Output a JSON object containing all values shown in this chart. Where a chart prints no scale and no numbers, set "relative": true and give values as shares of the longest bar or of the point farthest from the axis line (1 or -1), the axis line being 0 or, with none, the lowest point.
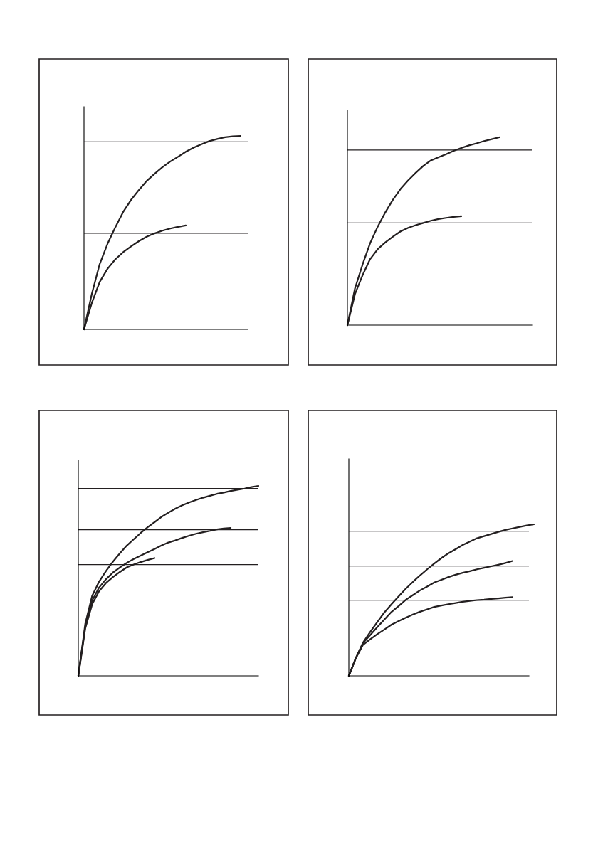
{
  "chart_data": [
    {
      "type": "line",
      "relative": true,
      "categories": [
        null,
        null,
        null,
        null,
        null,
        null,
        null,
        null,
        null,
        null,
        null,
        null,
        null,
        null,
        null,
        null,
        null,
        null,
        null,
        null,
        null,
        null
      ],
      "series": [
        {
          "color": "#231f20",
          "values": [
            0,
            0.184,
            0.337,
            0.442,
            0.528,
            0.607,
            0.669,
            0.72,
            0.767,
            0.804,
            0.838,
            0.867,
            0.892,
            0.918,
            0.939,
            0.957,
            0.973,
            0.984,
            0.993,
            0.998,
            1.0,
            null
          ]
        },
        {
          "color": "#231f20",
          "values": [
            0,
            0.137,
            0.245,
            0.313,
            0.362,
            0.399,
            0.429,
            0.456,
            0.479,
            0.496,
            0.51,
            0.521,
            0.53,
            0.537,
            null,
            null,
            null,
            null,
            null,
            null,
            null,
            null
          ]
        }
      ],
      "ref_lines": [
        {
          "axis": "y",
          "value": 0.969,
          "color": "#231f20"
        },
        {
          "axis": "y",
          "value": 0.497,
          "color": "#231f20"
        }
      ]
    },
    {
      "type": "line",
      "relative": true,
      "categories": [
        null,
        null,
        null,
        null,
        null,
        null,
        null,
        null,
        null,
        null,
        null,
        null,
        null,
        null,
        null,
        null,
        null,
        null,
        null,
        null,
        null,
        null,
        null,
        null,
        null
      ],
      "series": [
        {
          "color": "#231f20",
          "values": [
            0,
            0.196,
            0.323,
            0.437,
            0.525,
            0.601,
            0.668,
            0.725,
            0.771,
            0.811,
            0.848,
            0.877,
            0.894,
            0.91,
            0.928,
            0.943,
            0.957,
            0.968,
            0.98,
            0.99,
            1.0,
            null,
            null,
            null,
            null
          ]
        },
        {
          "color": "#231f20",
          "values": [
            0,
            0.165,
            0.266,
            0.352,
            0.405,
            0.441,
            0.471,
            0.499,
            0.518,
            0.532,
            0.544,
            0.556,
            0.565,
            0.571,
            0.576,
            0.58,
            null,
            null,
            null,
            null,
            null,
            null,
            null,
            null,
            null
          ]
        }
      ],
      "ref_lines": [
        {
          "axis": "y",
          "value": 0.932,
          "color": "#231f20"
        },
        {
          "axis": "y",
          "value": 0.544,
          "color": "#231f20"
        }
      ]
    },
    {
      "type": "line",
      "relative": true,
      "categories": [
        null,
        null,
        null,
        null,
        null,
        null,
        null,
        null,
        null,
        null,
        null,
        null,
        null,
        null,
        null,
        null,
        null,
        null,
        null,
        null,
        null,
        null,
        null,
        null,
        null,
        null,
        null
      ],
      "series": [
        {
          "color": "#231f20",
          "values": [
            0,
            0.274,
            0.421,
            0.496,
            0.552,
            0.601,
            0.645,
            0.686,
            0.719,
            0.752,
            0.782,
            0.809,
            0.837,
            0.859,
            0.88,
            0.898,
            0.913,
            0.926,
            0.938,
            0.948,
            0.958,
            0.965,
            0.973,
            0.98,
            0.986,
            0.994,
            1.0
          ]
        },
        {
          "color": "#231f20",
          "values": [
            0,
            0.259,
            0.397,
            0.465,
            0.509,
            0.544,
            0.571,
            0.595,
            0.615,
            0.633,
            0.651,
            0.668,
            0.686,
            0.702,
            0.713,
            0.726,
            0.738,
            0.748,
            0.756,
            0.763,
            0.771,
            0.776,
            0.779,
            null,
            null,
            null,
            null
          ]
        },
        {
          "color": "#231f20",
          "values": [
            0,
            0.249,
            0.377,
            0.446,
            0.489,
            0.52,
            0.547,
            0.571,
            0.586,
            0.599,
            0.61,
            0.62,
            null,
            null,
            null,
            null,
            null,
            null,
            null,
            null,
            null,
            null,
            null,
            null,
            null,
            null,
            null
          ]
        }
      ],
      "ref_lines": [
        {
          "axis": "y",
          "value": 0.986,
          "color": "#231f20"
        },
        {
          "axis": "y",
          "value": 0.769,
          "color": "#231f20"
        },
        {
          "axis": "y",
          "value": 0.586,
          "color": "#231f20"
        }
      ]
    },
    {
      "type": "line",
      "relative": true,
      "categories": [
        null,
        null,
        null,
        null,
        null,
        null,
        null,
        null,
        null,
        null,
        null,
        null,
        null,
        null,
        null,
        null,
        null,
        null,
        null,
        null,
        null,
        null,
        null,
        null,
        null,
        null,
        null
      ],
      "series": [
        {
          "color": "#231f20",
          "values": [
            0,
            0.119,
            0.22,
            0.289,
            0.355,
            0.419,
            0.473,
            0.525,
            0.575,
            0.62,
            0.663,
            0.703,
            0.741,
            0.777,
            0.809,
            0.836,
            0.864,
            0.886,
            0.908,
            0.922,
            0.936,
            0.95,
            0.963,
            0.973,
            0.983,
            0.992,
            1.0
          ]
        },
        {
          "color": "#231f20",
          "values": [
            0,
            0.119,
            0.217,
            0.269,
            0.322,
            0.372,
            0.422,
            0.461,
            0.502,
            0.533,
            0.564,
            0.589,
            0.616,
            0.634,
            0.652,
            0.667,
            0.68,
            0.691,
            0.703,
            0.713,
            0.723,
            0.733,
            0.745,
            0.758,
            null,
            null,
            null
          ]
        },
        {
          "color": "#231f20",
          "values": [
            0,
            0.119,
            0.205,
            0.241,
            0.275,
            0.306,
            0.338,
            0.361,
            0.384,
            0.405,
            0.423,
            0.439,
            0.455,
            0.464,
            0.473,
            0.481,
            0.489,
            0.495,
            0.5,
            0.503,
            0.508,
            0.511,
            0.516,
            0.519,
            null,
            null,
            null
          ]
        }
      ],
      "ref_lines": [
        {
          "axis": "y",
          "value": 0.955,
          "color": "#231f20"
        },
        {
          "axis": "y",
          "value": 0.725,
          "color": "#231f20"
        },
        {
          "axis": "y",
          "value": 0.5,
          "color": "#231f20"
        }
      ]
    }
  ]
}
